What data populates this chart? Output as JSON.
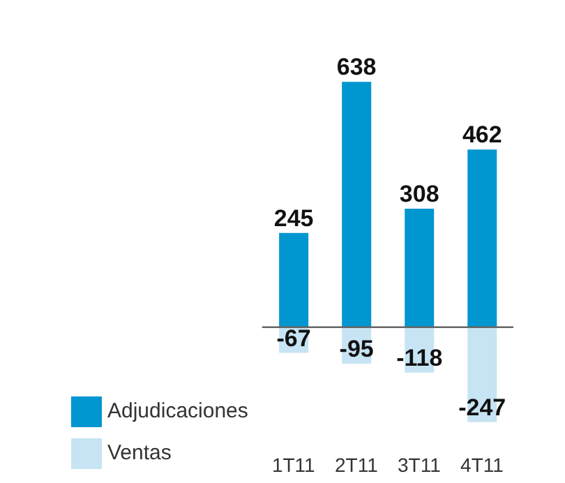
{
  "chart_data": {
    "type": "bar",
    "categories": [
      "1T11",
      "2T11",
      "3T11",
      "4T11"
    ],
    "stacked": true,
    "data_labels": true,
    "legend": "bottom left",
    "grid": false,
    "series": [
      {
        "name": "Adjudicaciones",
        "color": "#0096d0",
        "values": [
          245,
          638,
          308,
          462
        ]
      },
      {
        "name": "Ventas",
        "color": "#c6e4f3",
        "values": [
          -67,
          -95,
          -118,
          -247
        ]
      }
    ]
  }
}
